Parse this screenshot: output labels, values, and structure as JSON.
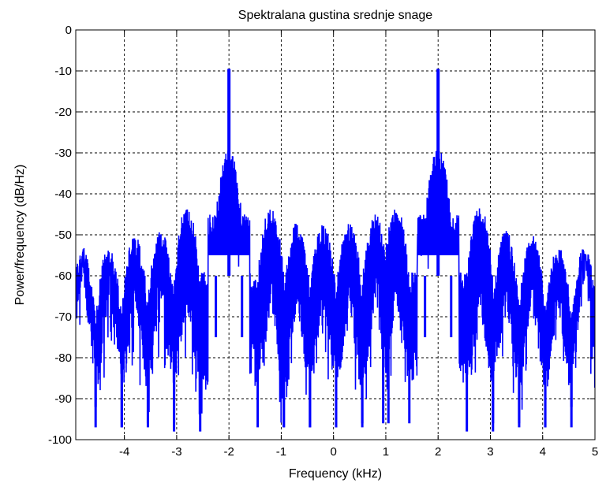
{
  "chart_data": {
    "type": "line",
    "title": "Spektralana gustina srednje snage",
    "xlabel": "Frequency (kHz)",
    "ylabel": "Power/frequency (dB/Hz)",
    "xlim": [
      -5,
      5
    ],
    "ylim": [
      -100,
      0
    ],
    "x_ticks": [
      -4,
      -3,
      -2,
      -1,
      0,
      1,
      2,
      3,
      4,
      5
    ],
    "x_tick_labels": [
      "-4",
      "-3",
      "-2",
      "-1",
      "0",
      "1",
      "2",
      "3",
      "4",
      "5"
    ],
    "y_ticks": [
      0,
      -10,
      -20,
      -30,
      -40,
      -50,
      -60,
      -70,
      -80,
      -90,
      -100
    ],
    "y_tick_labels": [
      "0",
      "-10",
      "-20",
      "-30",
      "-40",
      "-50",
      "-60",
      "-70",
      "-80",
      "-90",
      "-100"
    ],
    "grid": true,
    "line_color": "#0000ff",
    "tone_peaks": [
      {
        "x": -2.0,
        "y": -9.5
      },
      {
        "x": 2.0,
        "y": -9.5
      }
    ],
    "lobes": [
      {
        "center": -4.8,
        "top": -53,
        "floor": -92
      },
      {
        "center": -4.3,
        "top": -53,
        "floor": -97
      },
      {
        "center": -3.8,
        "top": -50,
        "floor": -97
      },
      {
        "center": -3.3,
        "top": -49,
        "floor": -96
      },
      {
        "center": -2.8,
        "top": -43,
        "floor": -98
      },
      {
        "center": -2.0,
        "top": -29,
        "floor": -60
      },
      {
        "center": -1.2,
        "top": -43,
        "floor": -97
      },
      {
        "center": -0.7,
        "top": -47,
        "floor": -97
      },
      {
        "center": -0.2,
        "top": -47,
        "floor": -97
      },
      {
        "center": 0.3,
        "top": -47,
        "floor": -97
      },
      {
        "center": 0.8,
        "top": -45,
        "floor": -96
      },
      {
        "center": 1.2,
        "top": -43,
        "floor": -96
      },
      {
        "center": 2.0,
        "top": -29,
        "floor": -60
      },
      {
        "center": 2.8,
        "top": -43,
        "floor": -98
      },
      {
        "center": 3.3,
        "top": -49,
        "floor": -96
      },
      {
        "center": 3.8,
        "top": -50,
        "floor": -97
      },
      {
        "center": 4.3,
        "top": -53,
        "floor": -97
      },
      {
        "center": 4.8,
        "top": -53,
        "floor": -92
      }
    ]
  }
}
